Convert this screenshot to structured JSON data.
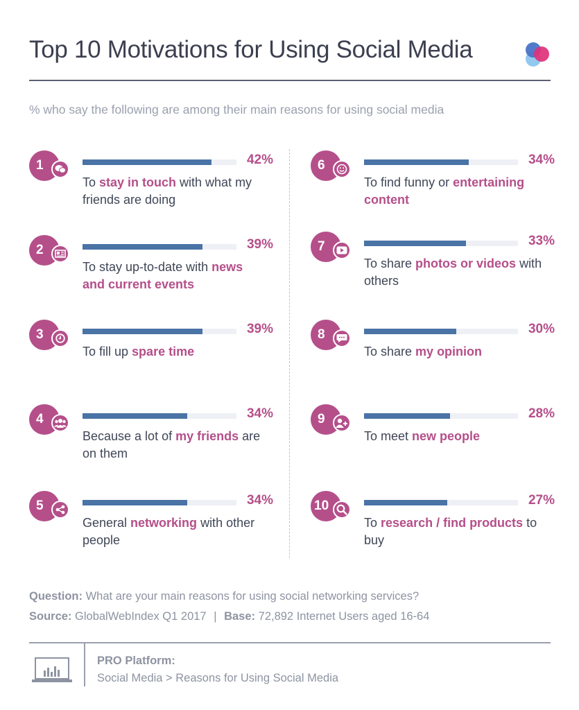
{
  "title": "Top 10 Motivations for Using Social Media",
  "subtitle": "% who say the following are among their main reasons for using social media",
  "colors": {
    "accent": "#b54f8a",
    "bar": "#4a73a6",
    "track": "#eef0f5",
    "logo_blue": "#4a73c7",
    "logo_pink": "#e0317a",
    "logo_light": "#8dc5ee"
  },
  "items": [
    {
      "rank": "1",
      "pct_label": "42%",
      "value": 42,
      "icon": "chat-bubbles-icon",
      "pre": "To ",
      "hl": "stay in touch",
      "post": " with what my friends are doing",
      "pre2": "",
      "hl2": "",
      "post2": ""
    },
    {
      "rank": "2",
      "pct_label": "39%",
      "value": 39,
      "icon": "newspaper-icon",
      "pre": "To stay up-to-date with ",
      "hl": "news and current events",
      "post": "",
      "pre2": "",
      "hl2": "",
      "post2": ""
    },
    {
      "rank": "3",
      "pct_label": "39%",
      "value": 39,
      "icon": "clock-icon",
      "pre": "To fill up ",
      "hl": "spare time",
      "post": "",
      "pre2": "",
      "hl2": "",
      "post2": ""
    },
    {
      "rank": "4",
      "pct_label": "34%",
      "value": 34,
      "icon": "group-icon",
      "pre": "Because a lot of ",
      "hl": "my friends",
      "post": " are on them",
      "pre2": "",
      "hl2": "",
      "post2": ""
    },
    {
      "rank": "5",
      "pct_label": "34%",
      "value": 34,
      "icon": "share-icon",
      "pre": "General ",
      "hl": "networking",
      "post": " with other people",
      "pre2": "",
      "hl2": "",
      "post2": ""
    },
    {
      "rank": "6",
      "pct_label": "34%",
      "value": 34,
      "icon": "smiley-icon",
      "pre": "To find funny or ",
      "hl": "entertaining content",
      "post": "",
      "pre2": "",
      "hl2": "",
      "post2": ""
    },
    {
      "rank": "7",
      "pct_label": "33%",
      "value": 33,
      "icon": "video-play-icon",
      "pre": "To share ",
      "hl": "photos or videos",
      "post": " with others",
      "pre2": "",
      "hl2": "",
      "post2": ""
    },
    {
      "rank": "8",
      "pct_label": "30%",
      "value": 30,
      "icon": "speech-bubble-icon",
      "pre": "To share ",
      "hl": "my opinion",
      "post": "",
      "pre2": "",
      "hl2": "",
      "post2": ""
    },
    {
      "rank": "9",
      "pct_label": "28%",
      "value": 28,
      "icon": "add-person-icon",
      "pre": "To meet ",
      "hl": "new people",
      "post": "",
      "pre2": "",
      "hl2": "",
      "post2": ""
    },
    {
      "rank": "10",
      "pct_label": "27%",
      "value": 27,
      "icon": "magnifier-icon",
      "pre": "To ",
      "hl": "research / find products",
      "post": " to buy",
      "pre2": "",
      "hl2": "",
      "post2": ""
    }
  ],
  "footer": {
    "question_label": "Question:",
    "question_text": "What are your main reasons for using social networking services?",
    "source_label": "Source:",
    "source_text": "GlobalWebIndex Q1 2017",
    "sep": "|",
    "base_label": "Base:",
    "base_text": "72,892 Internet Users aged 16-64",
    "pro_label": "PRO Platform:",
    "pro_path": "Social Media > Reasons for Using Social Media"
  },
  "chart_data": {
    "type": "bar",
    "title": "Top 10 Motivations for Using Social Media",
    "subtitle": "% who say the following are among their main reasons for using social media",
    "categories": [
      "To stay in touch with what my friends are doing",
      "To stay up-to-date with news and current events",
      "To fill up spare time",
      "Because a lot of my friends are on them",
      "General networking with other people",
      "To find funny or entertaining content",
      "To share photos or videos with others",
      "To share my opinion",
      "To meet new people",
      "To research / find products to buy"
    ],
    "values": [
      42,
      39,
      39,
      34,
      34,
      34,
      33,
      30,
      28,
      27
    ],
    "ylim": [
      0,
      100
    ],
    "orientation": "horizontal",
    "grid": false
  }
}
